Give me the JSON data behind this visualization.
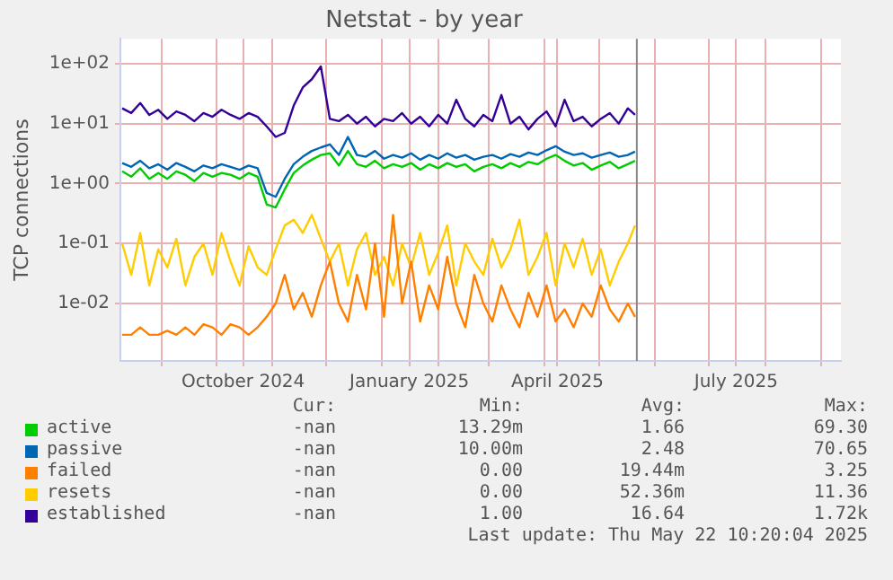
{
  "chart_data": {
    "type": "line",
    "title": "Netstat - by year",
    "ylabel": "TCP connections",
    "log": "y",
    "grid": true,
    "legend": "bottom",
    "marker": "none",
    "line_style": "solid",
    "xlim": [
      "2024-08-09",
      "2025-09-12"
    ],
    "xticks": [
      {
        "value": "2024-09-01",
        "label": null
      },
      {
        "value": "2024-10-01",
        "label": null
      },
      {
        "value": "2024-10-16",
        "label": "October 2024"
      },
      {
        "value": "2024-11-01",
        "label": null
      },
      {
        "value": "2024-12-01",
        "label": null
      },
      {
        "value": "2025-01-01",
        "label": null
      },
      {
        "value": "2025-01-16",
        "label": "January 2025"
      },
      {
        "value": "2025-02-01",
        "label": null
      },
      {
        "value": "2025-03-01",
        "label": null
      },
      {
        "value": "2025-04-01",
        "label": null
      },
      {
        "value": "2025-04-08",
        "label": "April 2025"
      },
      {
        "value": "2025-05-01",
        "label": null
      },
      {
        "value": "2025-06-01",
        "label": null
      },
      {
        "value": "2025-07-01",
        "label": null
      },
      {
        "value": "2025-07-16",
        "label": "July 2025"
      },
      {
        "value": "2025-08-01",
        "label": null
      },
      {
        "value": "2025-09-01",
        "label": null
      }
    ],
    "ylim": [
      0.0011,
      260
    ],
    "yticks": [
      {
        "value": 0.01,
        "label": "1e-02"
      },
      {
        "value": 0.1,
        "label": "1e-01"
      },
      {
        "value": 1,
        "label": "1e+00"
      },
      {
        "value": 10,
        "label": "1e+01"
      },
      {
        "value": 100,
        "label": "1e+02"
      }
    ],
    "ref_lines": [
      {
        "axis": "x",
        "value": "2025-05-22",
        "label": null,
        "color": "#888888"
      }
    ],
    "x": [
      "2024-08-10",
      "2024-08-15",
      "2024-08-20",
      "2024-08-25",
      "2024-08-30",
      "2024-09-04",
      "2024-09-09",
      "2024-09-14",
      "2024-09-19",
      "2024-09-24",
      "2024-09-29",
      "2024-10-04",
      "2024-10-09",
      "2024-10-14",
      "2024-10-19",
      "2024-10-24",
      "2024-10-29",
      "2024-11-03",
      "2024-11-08",
      "2024-11-13",
      "2024-11-18",
      "2024-11-23",
      "2024-11-28",
      "2024-12-03",
      "2024-12-08",
      "2024-12-13",
      "2024-12-18",
      "2024-12-23",
      "2024-12-28",
      "2025-01-02",
      "2025-01-07",
      "2025-01-12",
      "2025-01-17",
      "2025-01-22",
      "2025-01-27",
      "2025-02-01",
      "2025-02-06",
      "2025-02-11",
      "2025-02-16",
      "2025-02-21",
      "2025-02-26",
      "2025-03-03",
      "2025-03-08",
      "2025-03-13",
      "2025-03-18",
      "2025-03-23",
      "2025-03-28",
      "2025-04-02",
      "2025-04-07",
      "2025-04-12",
      "2025-04-17",
      "2025-04-22",
      "2025-04-27",
      "2025-05-02",
      "2025-05-07",
      "2025-05-12",
      "2025-05-17",
      "2025-05-21"
    ],
    "series": [
      {
        "name": "active",
        "color": "#00cc00",
        "values": [
          1.6,
          1.3,
          1.8,
          1.2,
          1.5,
          1.2,
          1.6,
          1.4,
          1.1,
          1.5,
          1.3,
          1.5,
          1.4,
          1.2,
          1.5,
          1.3,
          0.45,
          0.4,
          0.8,
          1.5,
          2.0,
          2.5,
          3.0,
          3.2,
          2.0,
          3.5,
          2.1,
          1.9,
          2.4,
          1.8,
          2.1,
          1.9,
          2.2,
          1.7,
          2.1,
          1.8,
          2.2,
          1.9,
          2.1,
          1.6,
          1.9,
          2.1,
          1.8,
          2.2,
          1.9,
          2.3,
          2.1,
          2.6,
          3.0,
          2.4,
          2.0,
          2.2,
          1.7,
          2.0,
          2.3,
          1.8,
          2.1,
          2.4
        ]
      },
      {
        "name": "passive",
        "color": "#0066b3",
        "values": [
          2.2,
          1.9,
          2.4,
          1.8,
          2.1,
          1.7,
          2.2,
          1.9,
          1.6,
          2.0,
          1.8,
          2.1,
          1.9,
          1.7,
          2.0,
          1.8,
          0.7,
          0.6,
          1.2,
          2.1,
          2.8,
          3.5,
          4.0,
          4.5,
          3.0,
          6.0,
          3.0,
          2.8,
          3.5,
          2.6,
          3.0,
          2.7,
          3.2,
          2.5,
          3.0,
          2.6,
          3.2,
          2.7,
          3.0,
          2.5,
          2.8,
          3.0,
          2.6,
          3.1,
          2.8,
          3.3,
          3.0,
          3.6,
          4.2,
          3.4,
          3.0,
          3.2,
          2.7,
          3.0,
          3.3,
          2.8,
          3.0,
          3.4
        ]
      },
      {
        "name": "failed",
        "color": "#ff8000",
        "values": [
          0.003,
          0.003,
          0.004,
          0.003,
          0.003,
          0.0035,
          0.003,
          0.004,
          0.003,
          0.0045,
          0.004,
          0.003,
          0.0045,
          0.004,
          0.003,
          0.004,
          0.006,
          0.01,
          0.03,
          0.008,
          0.015,
          0.006,
          0.02,
          0.05,
          0.01,
          0.005,
          0.03,
          0.008,
          0.1,
          0.006,
          0.3,
          0.01,
          0.05,
          0.005,
          0.02,
          0.008,
          0.06,
          0.01,
          0.004,
          0.03,
          0.01,
          0.005,
          0.02,
          0.008,
          0.004,
          0.015,
          0.006,
          0.02,
          0.005,
          0.008,
          0.004,
          0.01,
          0.006,
          0.02,
          0.008,
          0.005,
          0.01,
          0.006
        ]
      },
      {
        "name": "resets",
        "color": "#ffcc00",
        "values": [
          0.1,
          0.03,
          0.15,
          0.02,
          0.08,
          0.04,
          0.12,
          0.02,
          0.06,
          0.1,
          0.03,
          0.15,
          0.05,
          0.02,
          0.09,
          0.04,
          0.03,
          0.08,
          0.2,
          0.25,
          0.15,
          0.3,
          0.12,
          0.05,
          0.1,
          0.02,
          0.08,
          0.15,
          0.03,
          0.06,
          0.02,
          0.1,
          0.04,
          0.15,
          0.03,
          0.07,
          0.2,
          0.02,
          0.1,
          0.05,
          0.03,
          0.12,
          0.04,
          0.08,
          0.25,
          0.03,
          0.06,
          0.15,
          0.02,
          0.1,
          0.04,
          0.12,
          0.03,
          0.08,
          0.02,
          0.05,
          0.1,
          0.2
        ]
      },
      {
        "name": "established",
        "color": "#330099",
        "values": [
          18,
          15,
          22,
          14,
          17,
          12,
          16,
          14,
          11,
          15,
          13,
          17,
          14,
          12,
          15,
          13,
          9,
          6,
          7,
          20,
          40,
          55,
          90,
          12,
          11,
          14,
          10,
          13,
          9,
          12,
          11,
          15,
          10,
          13,
          9,
          14,
          10,
          25,
          12,
          9,
          14,
          11,
          30,
          10,
          13,
          8,
          12,
          16,
          9,
          25,
          11,
          13,
          9,
          12,
          15,
          10,
          18,
          14
        ]
      }
    ],
    "annotations": [
      "Cur:",
      "Min:",
      "Avg:",
      "Max:",
      "-nan",
      "13.29m",
      "1.66",
      "69.30",
      "-nan",
      "10.00m",
      "2.48",
      "70.65",
      "-nan",
      "0.00",
      "19.44m",
      "3.25",
      "-nan",
      "0.00",
      "52.36m",
      "11.36",
      "-nan",
      "1.00",
      "16.64",
      "1.72k",
      "Last update: Thu May 22 10:20:04 2025"
    ]
  }
}
